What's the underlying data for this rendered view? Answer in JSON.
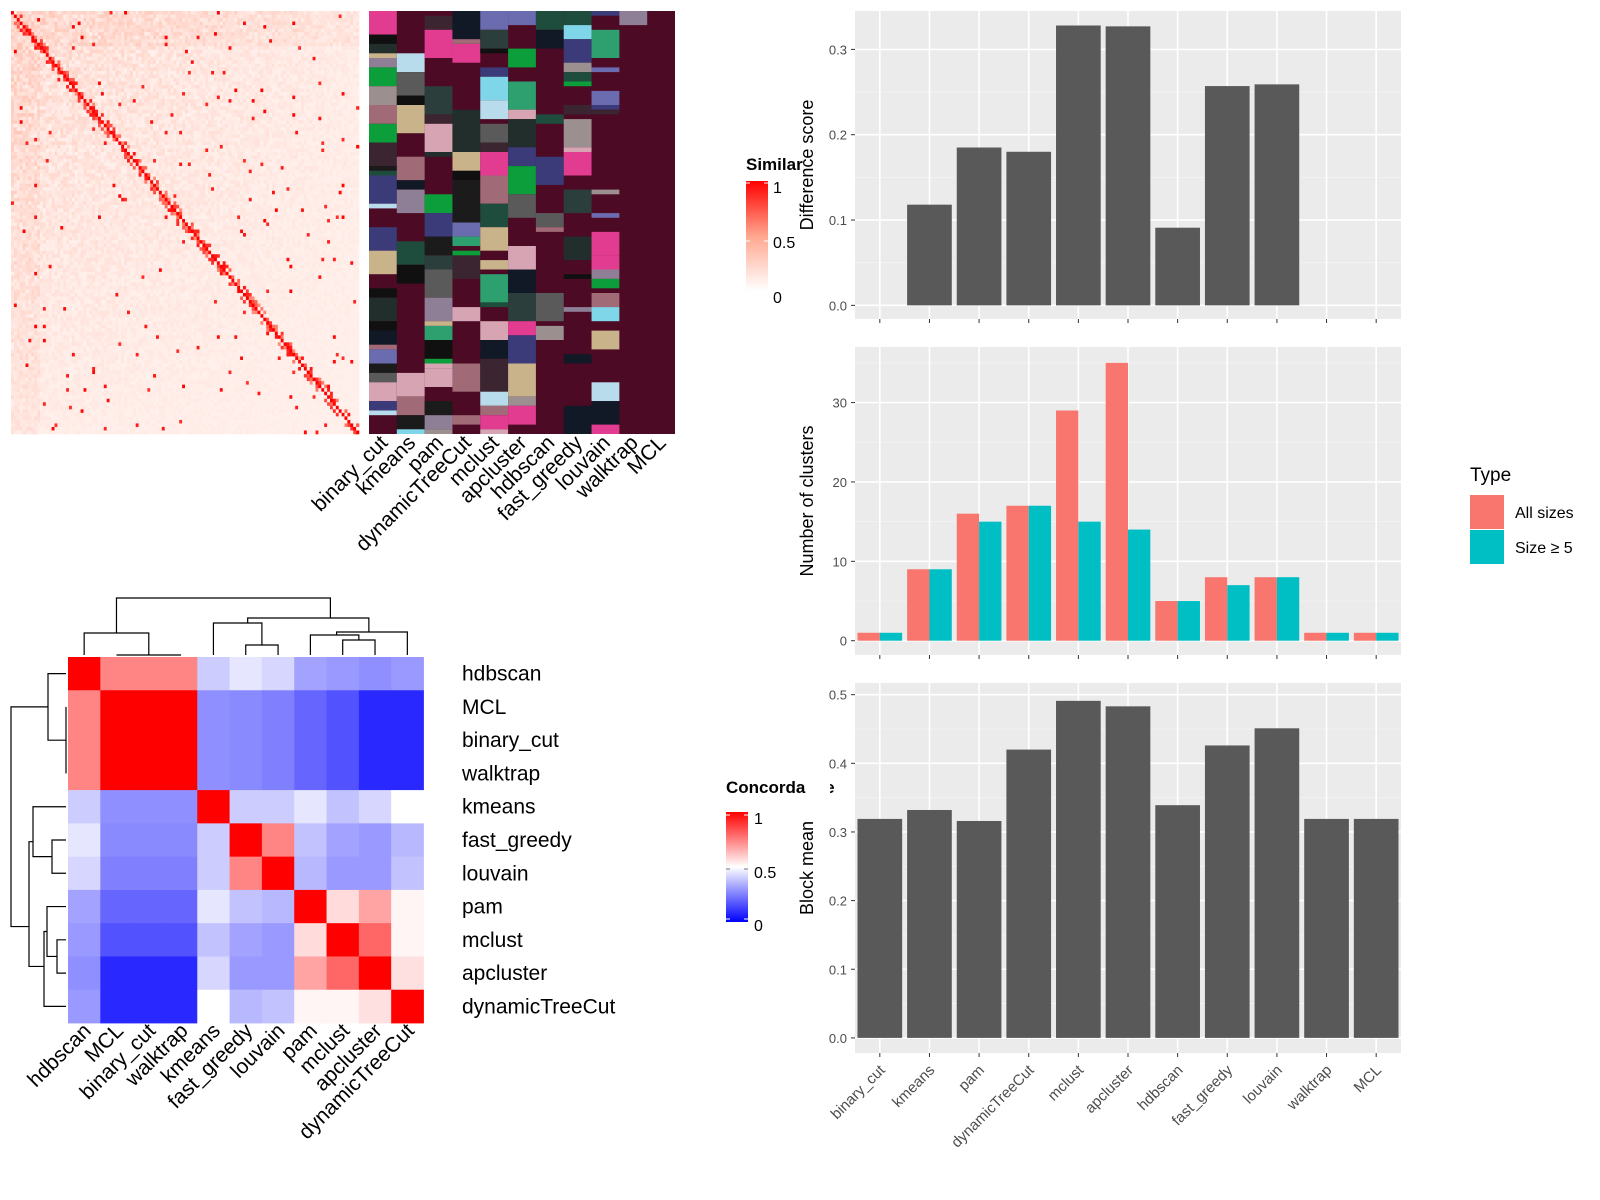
{
  "methods": [
    "binary_cut",
    "kmeans",
    "pam",
    "dynamicTreeCut",
    "mclust",
    "apcluster",
    "hdbscan",
    "fast_greedy",
    "louvain",
    "walktrap",
    "MCL"
  ],
  "similarity_legend": {
    "title": "Similarity",
    "ticks": [
      "1",
      "0.5",
      "0"
    ]
  },
  "concordance_legend": {
    "title": "Concordance",
    "ticks": [
      "1",
      "0.5",
      "0"
    ]
  },
  "type_legend": {
    "title": "Type",
    "entries": [
      {
        "label": "All sizes",
        "color": "#F8766D"
      },
      {
        "label": "Size ≥ 5",
        "color": "#00BFC4"
      }
    ]
  },
  "colors": {
    "bar": "#595959",
    "panel_bg": "#EBEBEB",
    "grid": "#FFFFFF",
    "heat_high": "#FF0000",
    "heat_low_blue": "#0000FF",
    "cluster_bg": "#4D0A25"
  },
  "chart_data": [
    {
      "id": "difference",
      "type": "bar",
      "ylabel": "Difference score",
      "categories": [
        "binary_cut",
        "kmeans",
        "pam",
        "dynamicTreeCut",
        "mclust",
        "apcluster",
        "hdbscan",
        "fast_greedy",
        "louvain",
        "walktrap",
        "MCL"
      ],
      "values": [
        0,
        0.118,
        0.185,
        0.18,
        0.328,
        0.327,
        0.091,
        0.257,
        0.259,
        0,
        0
      ],
      "ylim": [
        -0.016,
        0.345
      ],
      "yticks": [
        0.0,
        0.1,
        0.2,
        0.3
      ],
      "ytick_labels": [
        "0.0",
        "0.1",
        "0.2",
        "0.3"
      ],
      "grid": true
    },
    {
      "id": "clusters",
      "type": "bar",
      "ylabel": "Number of clusters",
      "categories": [
        "binary_cut",
        "kmeans",
        "pam",
        "dynamicTreeCut",
        "mclust",
        "apcluster",
        "hdbscan",
        "fast_greedy",
        "louvain",
        "walktrap",
        "MCL"
      ],
      "series": [
        {
          "name": "All sizes",
          "values": [
            1,
            9,
            16,
            17,
            29,
            35,
            5,
            8,
            8,
            1,
            1
          ]
        },
        {
          "name": "Size ≥ 5",
          "values": [
            1,
            9,
            15,
            17,
            15,
            14,
            5,
            7,
            8,
            1,
            1
          ]
        }
      ],
      "ylim": [
        -1.8,
        37
      ],
      "yticks": [
        0,
        10,
        20,
        30
      ],
      "ytick_labels": [
        "0",
        "10",
        "20",
        "30"
      ],
      "legend": "right",
      "grid": true
    },
    {
      "id": "blockmean",
      "type": "bar",
      "ylabel": "Block mean",
      "categories": [
        "binary_cut",
        "kmeans",
        "pam",
        "dynamicTreeCut",
        "mclust",
        "apcluster",
        "hdbscan",
        "fast_greedy",
        "louvain",
        "walktrap",
        "MCL"
      ],
      "values": [
        0.319,
        0.332,
        0.316,
        0.42,
        0.491,
        0.483,
        0.339,
        0.426,
        0.451,
        0.319,
        0.319
      ],
      "ylim": [
        -0.022,
        0.517
      ],
      "yticks": [
        0.0,
        0.1,
        0.2,
        0.3,
        0.4,
        0.5
      ],
      "ytick_labels": [
        "0.0",
        "0.1",
        "0.2",
        "0.3",
        "0.4",
        "0.5"
      ],
      "grid": true
    },
    {
      "id": "concordance",
      "type": "heatmap",
      "order": [
        "hdbscan",
        "MCL",
        "binary_cut",
        "walktrap",
        "kmeans",
        "fast_greedy",
        "louvain",
        "pam",
        "mclust",
        "apcluster",
        "dynamicTreeCut"
      ],
      "values": [
        [
          1.0,
          0.74,
          0.74,
          0.74,
          0.4,
          0.45,
          0.42,
          0.32,
          0.3,
          0.28,
          0.3
        ],
        [
          0.74,
          1.0,
          1.0,
          1.0,
          0.28,
          0.27,
          0.25,
          0.2,
          0.16,
          0.08,
          0.08
        ],
        [
          0.74,
          1.0,
          1.0,
          1.0,
          0.28,
          0.27,
          0.25,
          0.2,
          0.16,
          0.08,
          0.08
        ],
        [
          0.74,
          1.0,
          1.0,
          1.0,
          0.28,
          0.27,
          0.25,
          0.2,
          0.16,
          0.08,
          0.08
        ],
        [
          0.4,
          0.28,
          0.28,
          0.28,
          1.0,
          0.4,
          0.4,
          0.45,
          0.38,
          0.42,
          0.5
        ],
        [
          0.45,
          0.27,
          0.27,
          0.27,
          0.4,
          1.0,
          0.74,
          0.38,
          0.32,
          0.3,
          0.36
        ],
        [
          0.42,
          0.25,
          0.25,
          0.25,
          0.4,
          0.74,
          1.0,
          0.36,
          0.3,
          0.3,
          0.38
        ],
        [
          0.32,
          0.2,
          0.2,
          0.2,
          0.45,
          0.38,
          0.36,
          1.0,
          0.57,
          0.68,
          0.52
        ],
        [
          0.3,
          0.16,
          0.16,
          0.16,
          0.38,
          0.32,
          0.3,
          0.57,
          1.0,
          0.8,
          0.52
        ],
        [
          0.28,
          0.08,
          0.08,
          0.08,
          0.42,
          0.3,
          0.3,
          0.68,
          0.8,
          1.0,
          0.56
        ],
        [
          0.3,
          0.08,
          0.08,
          0.08,
          0.5,
          0.36,
          0.38,
          0.52,
          0.52,
          0.56,
          1.0
        ]
      ]
    },
    {
      "id": "clustering-assignments",
      "type": "heatmap",
      "columns": [
        "binary_cut",
        "kmeans",
        "pam",
        "dynamicTreeCut",
        "mclust",
        "apcluster",
        "hdbscan",
        "fast_greedy",
        "louvain",
        "walktrap",
        "MCL"
      ]
    },
    {
      "id": "similarity-matrix",
      "type": "heatmap"
    }
  ]
}
